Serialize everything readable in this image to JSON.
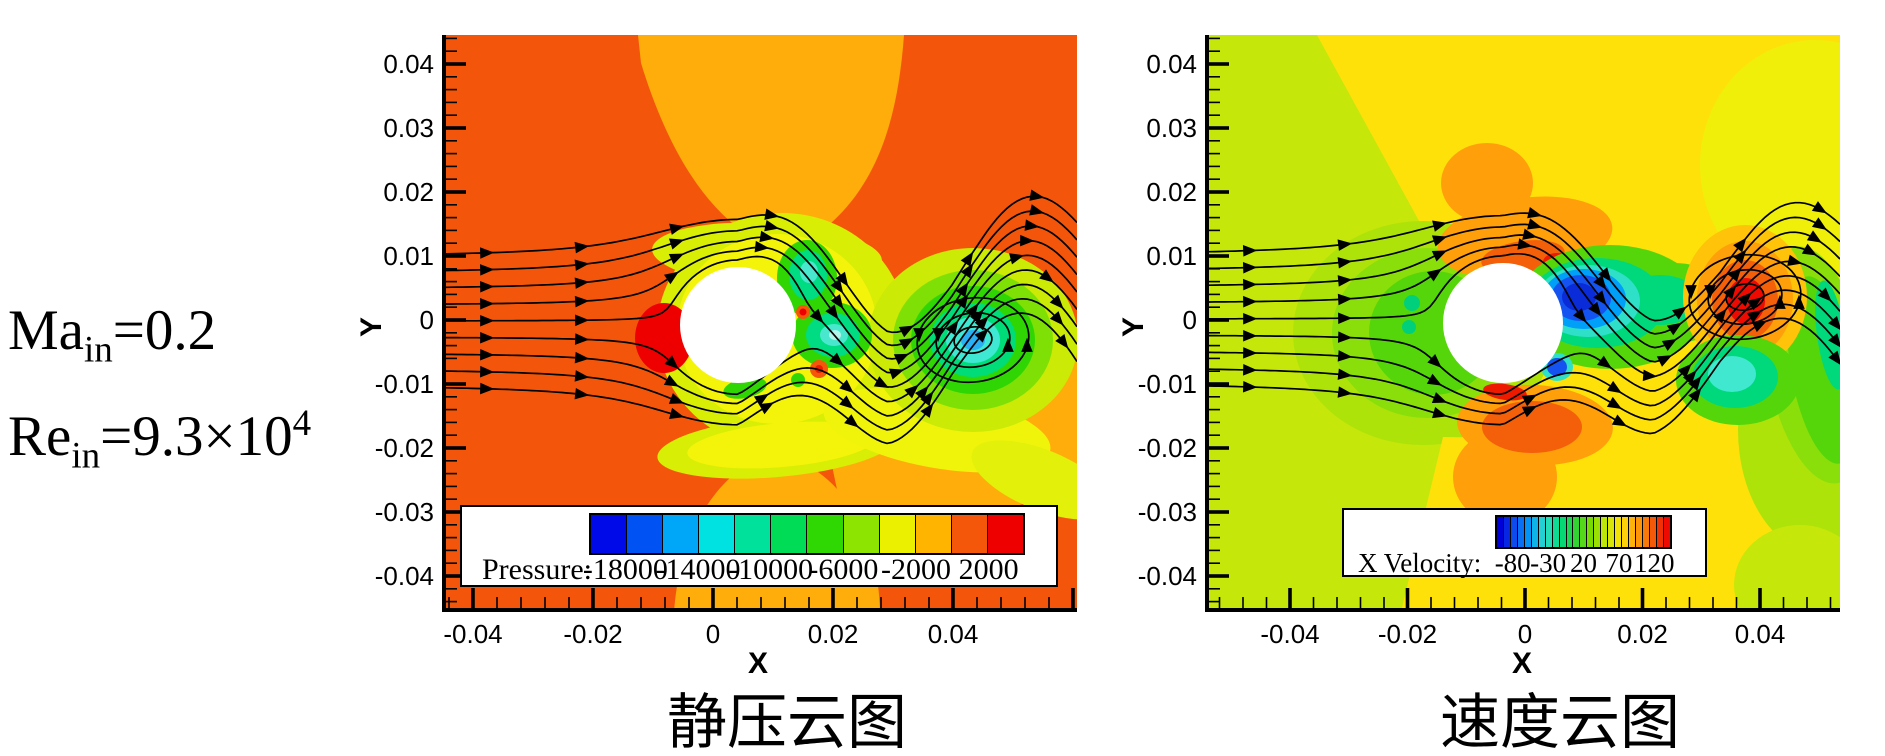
{
  "annotation": {
    "ma_base": "Ma",
    "sub": "in",
    "ma_rest": "=0.2",
    "re_base": "Re",
    "re_rest": "=9.3×10",
    "re_exp": "4"
  },
  "panels": [
    {
      "caption": "静压云图",
      "x_title": "X",
      "y_title": "Y",
      "x_ticks": [
        "-0.04",
        "-0.02",
        "0",
        "0.02",
        "0.04"
      ],
      "y_ticks": [
        "0.04",
        "0.03",
        "0.02",
        "0.01",
        "0",
        "-0.01",
        "-0.02",
        "-0.03",
        "-0.04"
      ],
      "legend": {
        "title": "Pressure:",
        "values": [
          "-18000",
          "-14000",
          "-10000",
          "-6000",
          "-2000",
          "2000"
        ]
      }
    },
    {
      "caption": "速度云图",
      "x_title": "X",
      "y_title": "Y",
      "x_ticks": [
        "-0.04",
        "-0.02",
        "0",
        "0.02",
        "0.04"
      ],
      "y_ticks": [
        "0.04",
        "0.03",
        "0.02",
        "0.01",
        "0",
        "-0.01",
        "-0.02",
        "-0.03",
        "-0.04"
      ],
      "legend": {
        "title": "X Velocity:",
        "values": [
          "-80",
          "-30",
          "20",
          "70",
          "120"
        ]
      }
    }
  ],
  "chart_data": [
    {
      "type": "heatmap",
      "subtype": "filled-contour-with-streamlines",
      "title": "静压云图",
      "variable": "Pressure",
      "xlabel": "X",
      "ylabel": "Y",
      "xlim": [
        -0.045,
        0.061
      ],
      "ylim": [
        -0.0455,
        0.0445
      ],
      "x_tick_values": [
        -0.04,
        -0.02,
        0,
        0.02,
        0.04
      ],
      "y_tick_values": [
        0.04,
        0.03,
        0.02,
        0.01,
        0,
        -0.01,
        -0.02,
        -0.03,
        -0.04
      ],
      "labeled_levels": [
        -18000,
        -14000,
        -10000,
        -6000,
        -2000,
        2000
      ],
      "contour_level_step": 2000,
      "contour_range": [
        -20000,
        4000
      ],
      "colorbar_colors": [
        "#0009E8",
        "#0053F2",
        "#00A6F8",
        "#00E2E2",
        "#00E29B",
        "#00DC55",
        "#2FD803",
        "#8CE400",
        "#EBF000",
        "#FFB400",
        "#F4570A",
        "#EE0000"
      ],
      "legend_position": "inside-bottom",
      "grid": false,
      "features": {
        "cylinder": {
          "center_x": 0.004,
          "center_y": 0.0,
          "radius": 0.0097
        },
        "stagnation_high_pressure": {
          "x": -0.009,
          "y": -0.002,
          "level": "≥2000"
        },
        "wake_vortex_low_pressure": {
          "x": 0.039,
          "y": -0.003,
          "level": "≈-14000"
        },
        "near_wake_low_pressure_pockets": [
          {
            "x": 0.012,
            "y": 0.008
          },
          {
            "x": 0.016,
            "y": -0.002
          }
        ],
        "freestream_band": "-2000 to 2000"
      },
      "streamlines": {
        "count": 9,
        "inlet_y_range": [
          -0.0105,
          0.0095
        ],
        "direction": "left-to-right",
        "vortex_center": {
          "x": 0.039,
          "y": -0.003
        }
      }
    },
    {
      "type": "heatmap",
      "subtype": "filled-contour-with-streamlines",
      "title": "速度云图",
      "variable": "X Velocity",
      "xlabel": "X",
      "ylabel": "Y",
      "xlim": [
        -0.054,
        0.054
      ],
      "ylim": [
        -0.0455,
        0.0445
      ],
      "x_tick_values": [
        -0.04,
        -0.02,
        0,
        0.02,
        0.04
      ],
      "y_tick_values": [
        0.04,
        0.03,
        0.02,
        0.01,
        0,
        -0.01,
        -0.02,
        -0.03,
        -0.04
      ],
      "labeled_levels": [
        -80,
        -30,
        20,
        70,
        120
      ],
      "contour_level_step": 10,
      "contour_range": [
        -105,
        145
      ],
      "colorbar_anchors": [
        "#0000D8",
        "#0F52F0",
        "#00A0F8",
        "#2FE0C8",
        "#00D87C",
        "#30D434",
        "#7ADB00",
        "#C6E70A",
        "#FFE10A",
        "#FF9F0A",
        "#F4600A",
        "#EE0A00"
      ],
      "colorbar_segments": 25,
      "legend_position": "inside-bottom",
      "grid": false,
      "features": {
        "cylinder": {
          "center_x": -0.004,
          "center_y": 0.0,
          "radius": 0.0102
        },
        "reversed_flow_wake": {
          "x": 0.009,
          "y": 0.004,
          "level": "≤-80"
        },
        "accelerated_flow_above_below_cylinder": {
          "level": "≈130"
        },
        "vortex_high_velocity_core": {
          "x": 0.037,
          "y": 0.004,
          "level": "≈140"
        },
        "low_velocity_blob": {
          "x": 0.036,
          "y": -0.009,
          "level": "≈20"
        },
        "freestream_band": "70 to 90"
      },
      "streamlines": {
        "count": 9,
        "inlet_y_range": [
          -0.0105,
          0.0105
        ],
        "direction": "left-to-right",
        "vortex_center": {
          "x": 0.037,
          "y": 0.004
        }
      }
    }
  ]
}
